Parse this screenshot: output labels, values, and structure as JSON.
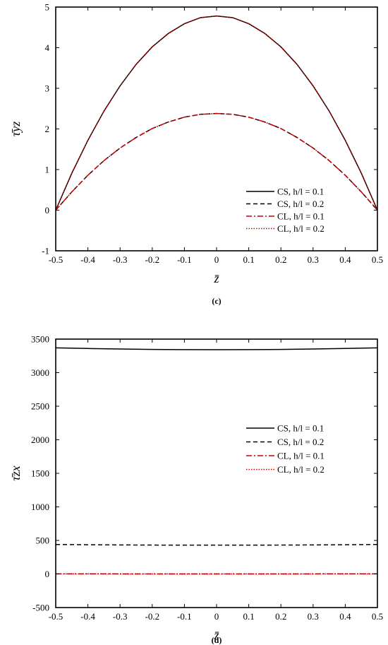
{
  "chart_data": [
    {
      "type": "line",
      "caption": "(c)",
      "xlabel": "z̄",
      "ylabel": "τ̄yz",
      "xlim": [
        -0.5,
        0.5
      ],
      "ylim": [
        -1,
        5
      ],
      "xticks": [
        -0.5,
        -0.4,
        -0.3,
        -0.2,
        -0.1,
        0,
        0.1,
        0.2,
        0.3,
        0.4,
        0.5
      ],
      "yticks": [
        -1,
        0,
        1,
        2,
        3,
        4,
        5
      ],
      "xtick_labels": [
        "-0.5",
        "-0.4",
        "-0.3",
        "-0.2",
        "-0.1",
        "0",
        "0.1",
        "0.2",
        "0.3",
        "0.4",
        "0.5"
      ],
      "ytick_labels": [
        "-1",
        "0",
        "1",
        "2",
        "3",
        "4",
        "5"
      ],
      "x": [
        -0.5,
        -0.45,
        -0.4,
        -0.35,
        -0.3,
        -0.25,
        -0.2,
        -0.15,
        -0.1,
        -0.05,
        0,
        0.05,
        0.1,
        0.15,
        0.2,
        0.25,
        0.3,
        0.35,
        0.4,
        0.45,
        0.5
      ],
      "legend_position": "bottom-right",
      "grid": false,
      "series": [
        {
          "name": "CS, h/l = 0.1",
          "color": "#000000",
          "dash": "solid",
          "values": [
            0,
            0.91,
            1.72,
            2.44,
            3.06,
            3.59,
            4.02,
            4.35,
            4.59,
            4.74,
            4.78,
            4.74,
            4.59,
            4.35,
            4.02,
            3.59,
            3.06,
            2.44,
            1.72,
            0.91,
            0
          ]
        },
        {
          "name": "CS, h/l = 0.2",
          "color": "#000000",
          "dash": "dashed",
          "values": [
            0,
            0.45,
            0.86,
            1.22,
            1.53,
            1.79,
            2.01,
            2.17,
            2.29,
            2.36,
            2.38,
            2.36,
            2.29,
            2.17,
            2.01,
            1.79,
            1.53,
            1.22,
            0.86,
            0.45,
            0
          ]
        },
        {
          "name": "CL, h/l = 0.1",
          "color": "#cc0000",
          "dash": "dashdot",
          "values": [
            0,
            0.45,
            0.86,
            1.22,
            1.53,
            1.79,
            2.01,
            2.17,
            2.29,
            2.36,
            2.38,
            2.36,
            2.29,
            2.17,
            2.01,
            1.79,
            1.53,
            1.22,
            0.86,
            0.45,
            0
          ]
        },
        {
          "name": "CL, h/l = 0.2",
          "color": "#cc0000",
          "dash": "dotted",
          "values": [
            0,
            0.91,
            1.72,
            2.44,
            3.06,
            3.59,
            4.02,
            4.35,
            4.59,
            4.74,
            4.78,
            4.74,
            4.59,
            4.35,
            4.02,
            3.59,
            3.06,
            2.44,
            1.72,
            0.91,
            0
          ]
        }
      ]
    },
    {
      "type": "line",
      "caption": "(d)",
      "xlabel": "z̄",
      "ylabel": "τ̄zx",
      "xlim": [
        -0.5,
        0.5
      ],
      "ylim": [
        -500,
        3500
      ],
      "xticks": [
        -0.5,
        -0.4,
        -0.3,
        -0.2,
        -0.1,
        0,
        0.1,
        0.2,
        0.3,
        0.4,
        0.5
      ],
      "yticks": [
        -500,
        0,
        500,
        1000,
        1500,
        2000,
        2500,
        3000,
        3500
      ],
      "xtick_labels": [
        "-0.5",
        "-0.4",
        "-0.3",
        "-0.2",
        "-0.1",
        "0",
        "0.1",
        "0.2",
        "0.3",
        "0.4",
        "0.5"
      ],
      "ytick_labels": [
        "-500",
        "0",
        "500",
        "1000",
        "1500",
        "2000",
        "2500",
        "3000",
        "3500"
      ],
      "x": [
        -0.5,
        -0.4,
        -0.3,
        -0.2,
        -0.1,
        0,
        0.1,
        0.2,
        0.3,
        0.4,
        0.5
      ],
      "legend_position": "center-right",
      "grid": false,
      "series": [
        {
          "name": "CS, h/l = 0.1",
          "color": "#000000",
          "dash": "solid",
          "values": [
            3370,
            3360,
            3352,
            3346,
            3343,
            3342,
            3343,
            3346,
            3352,
            3360,
            3370
          ]
        },
        {
          "name": "CS, h/l = 0.2",
          "color": "#000000",
          "dash": "dashed",
          "values": [
            440,
            436,
            433,
            431,
            430,
            430,
            430,
            431,
            433,
            436,
            440
          ]
        },
        {
          "name": "CL, h/l = 0.1",
          "color": "#cc0000",
          "dash": "dashdot",
          "values": [
            3,
            2,
            2,
            1,
            1,
            1,
            1,
            1,
            2,
            2,
            3
          ]
        },
        {
          "name": "CL, h/l = 0.2",
          "color": "#cc0000",
          "dash": "dotted",
          "values": [
            2,
            2,
            1,
            1,
            1,
            1,
            1,
            1,
            1,
            2,
            2
          ]
        }
      ]
    }
  ]
}
